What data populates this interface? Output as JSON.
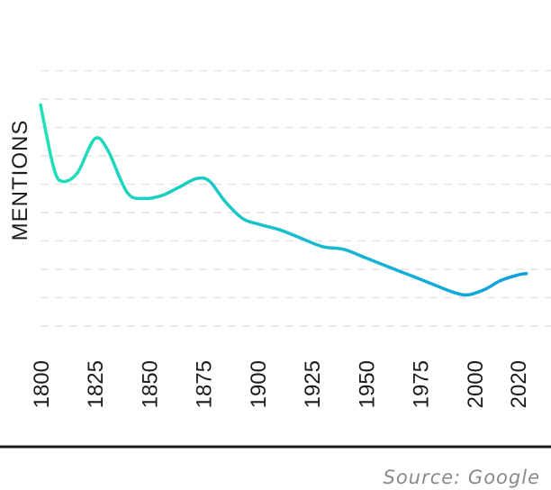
{
  "chart_data": {
    "type": "line",
    "title": "",
    "xlabel": "",
    "ylabel": "MENTIONS",
    "xlim": [
      1800,
      2024
    ],
    "ylim": [
      0,
      10
    ],
    "x_ticks": [
      1800,
      1825,
      1850,
      1875,
      1900,
      1925,
      1950,
      1975,
      2000,
      2020
    ],
    "grid": true,
    "y_tick_labels_shown": false,
    "series": [
      {
        "name": "Mentions",
        "color_start": "#1fe0b8",
        "color_end": "#0f9ee0",
        "x": [
          1800,
          1806,
          1810,
          1817,
          1825,
          1831,
          1840,
          1848,
          1856,
          1864,
          1872,
          1878,
          1885,
          1893,
          1900,
          1910,
          1920,
          1930,
          1940,
          1950,
          1960,
          1970,
          1980,
          1990,
          1997,
          2005,
          2012,
          2020,
          2024
        ],
        "y": [
          7.8,
          5.6,
          5.1,
          5.4,
          6.6,
          6.2,
          4.7,
          4.5,
          4.6,
          4.9,
          5.2,
          5.1,
          4.4,
          3.8,
          3.6,
          3.4,
          3.1,
          2.8,
          2.7,
          2.4,
          2.1,
          1.8,
          1.5,
          1.2,
          1.1,
          1.3,
          1.6,
          1.8,
          1.85
        ]
      }
    ]
  },
  "source": "Source: Google"
}
